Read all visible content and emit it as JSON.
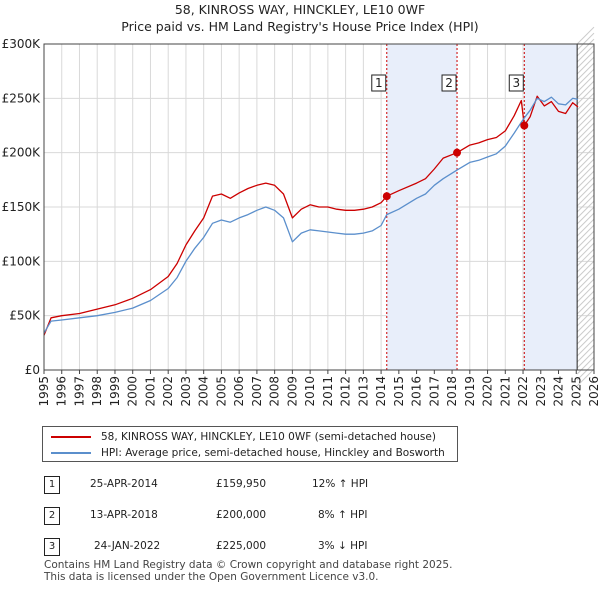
{
  "chart_data": {
    "type": "line",
    "title": "58, KINROSS WAY, HINCKLEY, LE10 0WF",
    "subtitle": "Price paid vs. HM Land Registry's House Price Index (HPI)",
    "x_ticks": [
      "1995",
      "1996",
      "1997",
      "1998",
      "1999",
      "2000",
      "2001",
      "2002",
      "2003",
      "2004",
      "2005",
      "2006",
      "2007",
      "2008",
      "2009",
      "2010",
      "2011",
      "2012",
      "2013",
      "2014",
      "2015",
      "2016",
      "2017",
      "2018",
      "2019",
      "2020",
      "2021",
      "2022",
      "2023",
      "2024",
      "2025",
      "2026"
    ],
    "y_ticks": [
      "£0",
      "£50K",
      "£100K",
      "£150K",
      "£200K",
      "£250K",
      "£300K"
    ],
    "xlim": [
      1995,
      2026
    ],
    "ylim": [
      0,
      300000
    ],
    "series": [
      {
        "name": "58, KINROSS WAY, HINCKLEY, LE10 0WF (semi-detached house)",
        "color": "#cc0000",
        "points": [
          [
            1995.0,
            32000
          ],
          [
            1995.4,
            48000
          ],
          [
            1996.0,
            50000
          ],
          [
            1997.0,
            52000
          ],
          [
            1998.0,
            56000
          ],
          [
            1999.0,
            60000
          ],
          [
            2000.0,
            66000
          ],
          [
            2001.0,
            74000
          ],
          [
            2002.0,
            86000
          ],
          [
            2002.5,
            98000
          ],
          [
            2003.0,
            115000
          ],
          [
            2003.5,
            128000
          ],
          [
            2004.0,
            140000
          ],
          [
            2004.5,
            160000
          ],
          [
            2005.0,
            162000
          ],
          [
            2005.5,
            158000
          ],
          [
            2006.0,
            163000
          ],
          [
            2006.5,
            167000
          ],
          [
            2007.0,
            170000
          ],
          [
            2007.5,
            172000
          ],
          [
            2008.0,
            170000
          ],
          [
            2008.5,
            162000
          ],
          [
            2009.0,
            140000
          ],
          [
            2009.5,
            148000
          ],
          [
            2010.0,
            152000
          ],
          [
            2010.5,
            150000
          ],
          [
            2011.0,
            150000
          ],
          [
            2011.5,
            148000
          ],
          [
            2012.0,
            147000
          ],
          [
            2012.5,
            147000
          ],
          [
            2013.0,
            148000
          ],
          [
            2013.5,
            150000
          ],
          [
            2014.0,
            154000
          ],
          [
            2014.32,
            159950
          ],
          [
            2015.0,
            165000
          ],
          [
            2016.0,
            172000
          ],
          [
            2016.5,
            176000
          ],
          [
            2017.0,
            185000
          ],
          [
            2017.5,
            195000
          ],
          [
            2018.28,
            200000
          ],
          [
            2019.0,
            207000
          ],
          [
            2019.5,
            209000
          ],
          [
            2020.0,
            212000
          ],
          [
            2020.5,
            214000
          ],
          [
            2021.0,
            220000
          ],
          [
            2021.5,
            234000
          ],
          [
            2021.9,
            248000
          ],
          [
            2022.07,
            225000
          ],
          [
            2022.4,
            233000
          ],
          [
            2022.8,
            252000
          ],
          [
            2023.2,
            243000
          ],
          [
            2023.6,
            247000
          ],
          [
            2024.0,
            238000
          ],
          [
            2024.4,
            236000
          ],
          [
            2024.8,
            246000
          ],
          [
            2025.1,
            242000
          ]
        ]
      },
      {
        "name": "HPI: Average price, semi-detached house, Hinckley and Bosworth",
        "color": "#5b8fcc",
        "points": [
          [
            1995.0,
            34000
          ],
          [
            1995.4,
            45000
          ],
          [
            1996.0,
            46000
          ],
          [
            1997.0,
            48000
          ],
          [
            1998.0,
            50000
          ],
          [
            1999.0,
            53000
          ],
          [
            2000.0,
            57000
          ],
          [
            2001.0,
            64000
          ],
          [
            2002.0,
            75000
          ],
          [
            2002.5,
            85000
          ],
          [
            2003.0,
            100000
          ],
          [
            2003.5,
            112000
          ],
          [
            2004.0,
            122000
          ],
          [
            2004.5,
            135000
          ],
          [
            2005.0,
            138000
          ],
          [
            2005.5,
            136000
          ],
          [
            2006.0,
            140000
          ],
          [
            2006.5,
            143000
          ],
          [
            2007.0,
            147000
          ],
          [
            2007.5,
            150000
          ],
          [
            2008.0,
            147000
          ],
          [
            2008.5,
            140000
          ],
          [
            2009.0,
            118000
          ],
          [
            2009.5,
            126000
          ],
          [
            2010.0,
            129000
          ],
          [
            2010.5,
            128000
          ],
          [
            2011.0,
            127000
          ],
          [
            2011.5,
            126000
          ],
          [
            2012.0,
            125000
          ],
          [
            2012.5,
            125000
          ],
          [
            2013.0,
            126000
          ],
          [
            2013.5,
            128000
          ],
          [
            2014.0,
            133000
          ],
          [
            2014.32,
            143000
          ],
          [
            2015.0,
            148000
          ],
          [
            2016.0,
            158000
          ],
          [
            2016.5,
            162000
          ],
          [
            2017.0,
            170000
          ],
          [
            2017.5,
            176000
          ],
          [
            2018.28,
            184000
          ],
          [
            2019.0,
            191000
          ],
          [
            2019.5,
            193000
          ],
          [
            2020.0,
            196000
          ],
          [
            2020.5,
            199000
          ],
          [
            2021.0,
            206000
          ],
          [
            2021.5,
            218000
          ],
          [
            2021.9,
            228000
          ],
          [
            2022.07,
            232000
          ],
          [
            2022.4,
            239000
          ],
          [
            2022.8,
            250000
          ],
          [
            2023.2,
            247000
          ],
          [
            2023.6,
            251000
          ],
          [
            2024.0,
            245000
          ],
          [
            2024.4,
            244000
          ],
          [
            2024.8,
            250000
          ],
          [
            2025.1,
            249000
          ]
        ]
      }
    ],
    "sales": [
      {
        "label": "1",
        "x": 2014.32,
        "price": 159950
      },
      {
        "label": "2",
        "x": 2018.28,
        "price": 200000
      },
      {
        "label": "3",
        "x": 2022.07,
        "price": 225000
      }
    ],
    "forecast_start": 2025.05
  },
  "legend": {
    "red_label": "58, KINROSS WAY, HINCKLEY, LE10 0WF (semi-detached house)",
    "blue_label": "HPI: Average price, semi-detached house, Hinckley and Bosworth"
  },
  "transactions": [
    {
      "num": "1",
      "date": "25-APR-2014",
      "price": "£159,950",
      "hpi": "12% ↑ HPI"
    },
    {
      "num": "2",
      "date": "13-APR-2018",
      "price": "£200,000",
      "hpi": "8% ↑ HPI"
    },
    {
      "num": "3",
      "date": "24-JAN-2022",
      "price": "£225,000",
      "hpi": "3% ↓ HPI"
    }
  ],
  "footer": {
    "line1": "Contains HM Land Registry data © Crown copyright and database right 2025.",
    "line2": "This data is licensed under the Open Government Licence v3.0."
  },
  "colors": {
    "red": "#cc0000",
    "blue": "#5b8fcc",
    "shade": "#e8eefa",
    "grid": "#d9d9d9"
  }
}
